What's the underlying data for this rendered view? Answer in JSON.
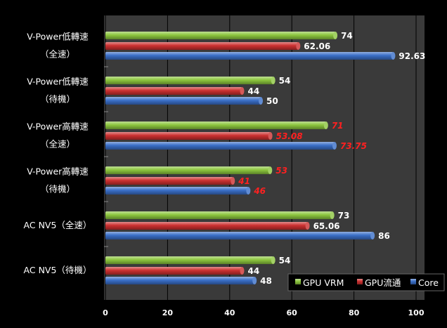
{
  "chart_data": {
    "type": "bar",
    "orientation": "horizontal",
    "categories": [
      [
        "V-Power低轉速",
        "（全速）"
      ],
      [
        "V-Power低轉速",
        "（待機）"
      ],
      [
        "V-Power高轉速",
        "（全速）"
      ],
      [
        "V-Power高轉速",
        "（待機）"
      ],
      [
        "AC NV5（全速）"
      ],
      [
        "AC NV5（待機）"
      ]
    ],
    "series": [
      {
        "name": "GPU VRM",
        "color": "#8cc63e",
        "values": [
          74,
          54,
          71,
          53,
          73,
          54
        ],
        "labels": [
          "74",
          "54",
          "71",
          "53",
          "73",
          "54"
        ]
      },
      {
        "name": "GPU流通",
        "color": "#cc3030",
        "values": [
          62.06,
          44,
          53.08,
          41,
          65.06,
          44
        ],
        "labels": [
          "62.06",
          "44",
          "53.08",
          "41",
          "65.06",
          "44"
        ]
      },
      {
        "name": "Core",
        "color": "#3a6fc8",
        "values": [
          92.63,
          50,
          73.75,
          46,
          86,
          48
        ],
        "labels": [
          "92.63",
          "50",
          "73.75",
          "46",
          "86",
          "48"
        ]
      }
    ],
    "label_styles": [
      "normal",
      "normal",
      "highlight-red-italic",
      "highlight-red-italic",
      "normal",
      "normal"
    ],
    "xlim": [
      0,
      100
    ],
    "xticks": [
      "0",
      "20",
      "40",
      "60",
      "80",
      "100"
    ],
    "grid": "vertical-major",
    "legend_position": "bottom-right",
    "colors": {
      "background": "#000000",
      "plot_area": "#3a3a3a",
      "gridline": "#000000",
      "label_default": "#ffffff",
      "label_highlight": "#ff2020"
    }
  }
}
